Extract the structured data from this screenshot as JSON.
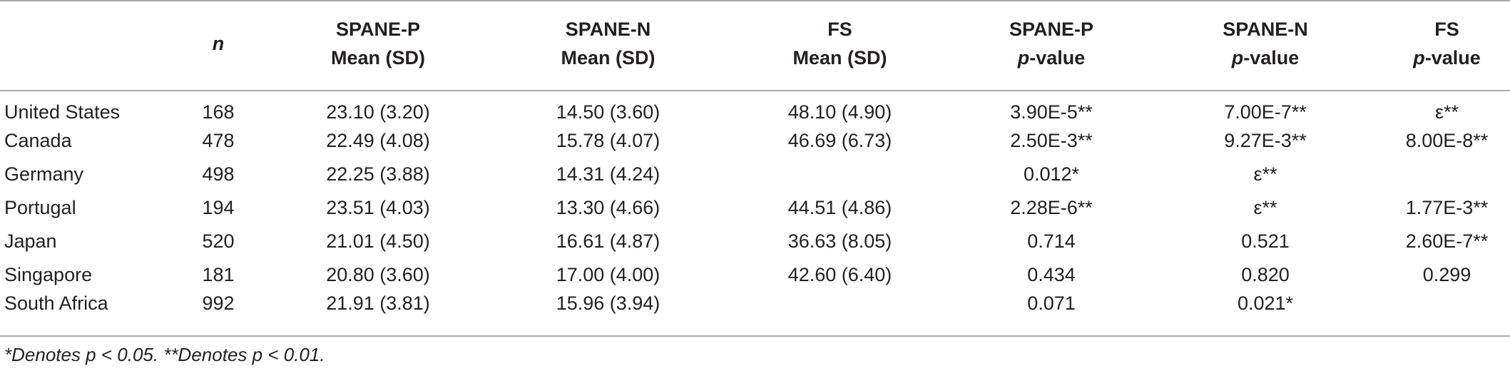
{
  "header": {
    "n": "n",
    "spane_p_mean": [
      "SPANE-P",
      "Mean (SD)"
    ],
    "spane_n_mean": [
      "SPANE-N",
      "Mean (SD)"
    ],
    "fs_mean": [
      "FS",
      "Mean (SD)"
    ],
    "spane_p_pval": [
      "SPANE-P",
      "p",
      "-value"
    ],
    "spane_n_pval": [
      "SPANE-N",
      "p",
      "-value"
    ],
    "fs_pval": [
      "FS",
      "p",
      "-value"
    ]
  },
  "rows": [
    {
      "country": "United States",
      "n": "168",
      "spane_p": "23.10 (3.20)",
      "spane_n": "14.50 (3.60)",
      "fs": "48.10 (4.90)",
      "p_spane_p": "3.90E-5**",
      "p_spane_n": "7.00E-7**",
      "p_fs": "ε**"
    },
    {
      "country": "Canada",
      "n": "478",
      "spane_p": "22.49 (4.08)",
      "spane_n": "15.78 (4.07)",
      "fs": "46.69 (6.73)",
      "p_spane_p": "2.50E-3**",
      "p_spane_n": "9.27E-3**",
      "p_fs": "8.00E-8**"
    },
    {
      "country": "Germany",
      "n": "498",
      "spane_p": "22.25 (3.88)",
      "spane_n": "14.31 (4.24)",
      "fs": "",
      "p_spane_p": "0.012*",
      "p_spane_n": "ε**",
      "p_fs": ""
    },
    {
      "country": "Portugal",
      "n": "194",
      "spane_p": "23.51 (4.03)",
      "spane_n": "13.30 (4.66)",
      "fs": "44.51 (4.86)",
      "p_spane_p": "2.28E-6**",
      "p_spane_n": "ε**",
      "p_fs": "1.77E-3**"
    },
    {
      "country": "Japan",
      "n": "520",
      "spane_p": "21.01 (4.50)",
      "spane_n": "16.61 (4.87)",
      "fs": "36.63 (8.05)",
      "p_spane_p": "0.714",
      "p_spane_n": "0.521",
      "p_fs": "2.60E-7**"
    },
    {
      "country": "Singapore",
      "n": "181",
      "spane_p": "20.80 (3.60)",
      "spane_n": "17.00 (4.00)",
      "fs": "42.60 (6.40)",
      "p_spane_p": "0.434",
      "p_spane_n": "0.820",
      "p_fs": "0.299"
    },
    {
      "country": "South Africa",
      "n": "992",
      "spane_p": "21.91 (3.81)",
      "spane_n": "15.96 (3.94)",
      "fs": "",
      "p_spane_p": "0.071",
      "p_spane_n": "0.021*",
      "p_fs": ""
    }
  ],
  "footnote": "*Denotes p < 0.05. **Denotes p < 0.01."
}
